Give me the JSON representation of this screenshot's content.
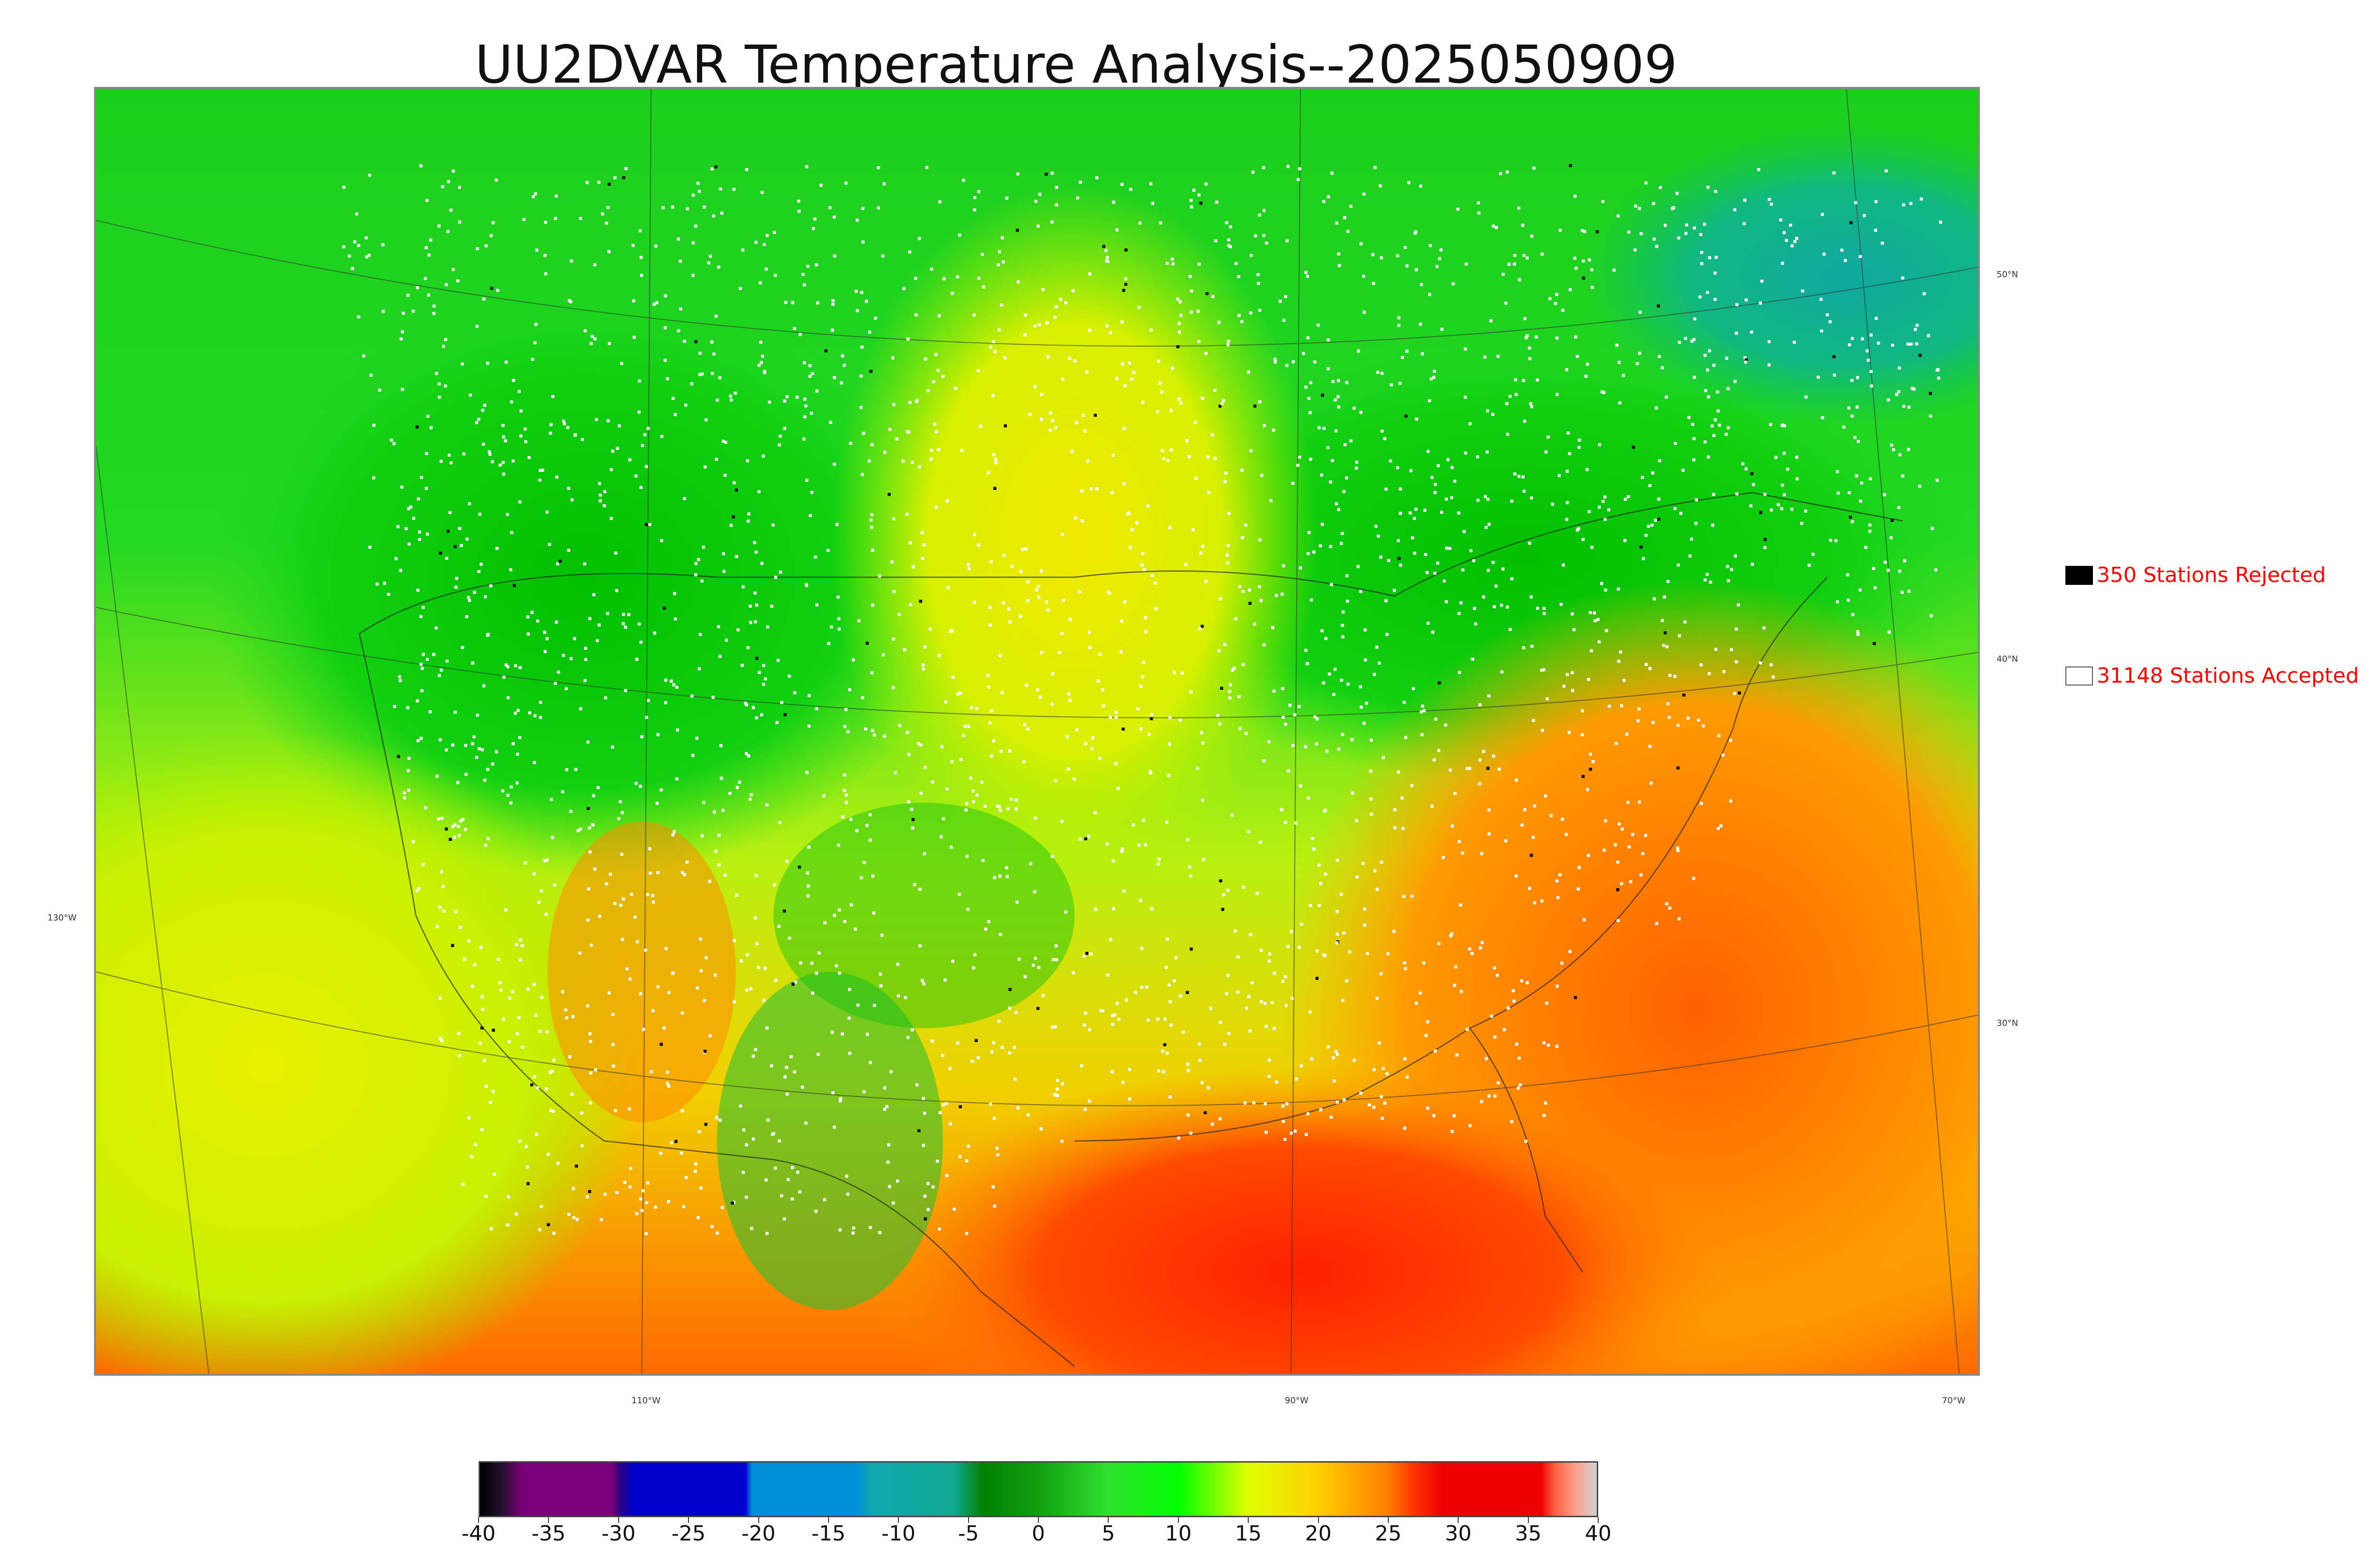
{
  "title": "UU2DVAR Temperature Analysis--2025050909",
  "map": {
    "lat_labels": [
      "50°N",
      "40°N",
      "30°N"
    ],
    "lon_labels": [
      "130°W",
      "110°W",
      "90°W",
      "70°W"
    ]
  },
  "legend": {
    "rejected": {
      "label": "350 Stations Rejected",
      "count": 350,
      "color": "#000000"
    },
    "accepted": {
      "label": "31148 Stations Accepted",
      "count": 31148,
      "color": "#ffffff"
    },
    "text_color": "#ff0000"
  },
  "colorbar": {
    "min": -40,
    "max": 40,
    "ticks": [
      "-40",
      "-35",
      "-30",
      "-25",
      "-20",
      "-15",
      "-10",
      "-5",
      "0",
      "5",
      "10",
      "15",
      "20",
      "25",
      "30",
      "35",
      "40"
    ],
    "stops": [
      {
        "v": -40,
        "color": "#000000"
      },
      {
        "v": -38.5,
        "color": "#20102a"
      },
      {
        "v": -37,
        "color": "#7a007a"
      },
      {
        "v": -30.5,
        "color": "#7a007a"
      },
      {
        "v": -30,
        "color": "#2a0080"
      },
      {
        "v": -29,
        "color": "#0000cc"
      },
      {
        "v": -21,
        "color": "#0000cc"
      },
      {
        "v": -20.5,
        "color": "#0090d8"
      },
      {
        "v": -13,
        "color": "#0090d8"
      },
      {
        "v": -12,
        "color": "#10a8b0"
      },
      {
        "v": -6,
        "color": "#10a890"
      },
      {
        "v": -4,
        "color": "#008000"
      },
      {
        "v": 0,
        "color": "#10a010"
      },
      {
        "v": 5,
        "color": "#30e030"
      },
      {
        "v": 10,
        "color": "#00ff00"
      },
      {
        "v": 15,
        "color": "#e0ff00"
      },
      {
        "v": 20,
        "color": "#ffd000"
      },
      {
        "v": 25,
        "color": "#ff8000"
      },
      {
        "v": 27,
        "color": "#ff3000"
      },
      {
        "v": 29,
        "color": "#ee0000"
      },
      {
        "v": 36,
        "color": "#ee0000"
      },
      {
        "v": 37,
        "color": "#ff6040"
      },
      {
        "v": 38.5,
        "color": "#ffa090"
      },
      {
        "v": 40,
        "color": "#d0d0d0"
      }
    ]
  }
}
